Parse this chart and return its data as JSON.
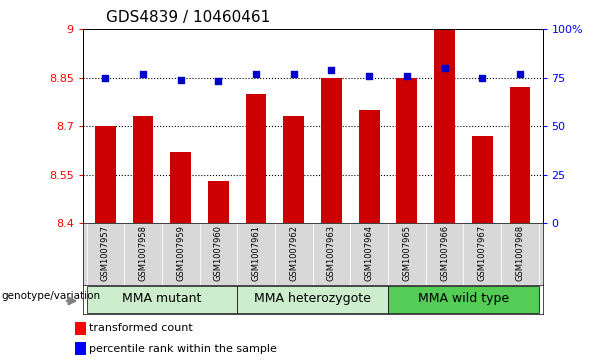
{
  "title": "GDS4839 / 10460461",
  "samples": [
    "GSM1007957",
    "GSM1007958",
    "GSM1007959",
    "GSM1007960",
    "GSM1007961",
    "GSM1007962",
    "GSM1007963",
    "GSM1007964",
    "GSM1007965",
    "GSM1007966",
    "GSM1007967",
    "GSM1007968"
  ],
  "transformed_counts": [
    8.7,
    8.73,
    8.62,
    8.53,
    8.8,
    8.73,
    8.85,
    8.75,
    8.85,
    9.0,
    8.67,
    8.82
  ],
  "percentile_ranks": [
    75,
    77,
    74,
    73,
    77,
    77,
    79,
    76,
    76,
    80,
    75,
    77
  ],
  "ylim_left": [
    8.4,
    9.0
  ],
  "ylim_right": [
    0,
    100
  ],
  "yticks_left": [
    8.4,
    8.55,
    8.7,
    8.85,
    9.0
  ],
  "ytick_labels_left": [
    "8.4",
    "8.55",
    "8.7",
    "8.85",
    "9"
  ],
  "yticks_right": [
    0,
    25,
    50,
    75,
    100
  ],
  "ytick_labels_right": [
    "0",
    "25",
    "50",
    "75",
    "100%"
  ],
  "bar_color": "#cc0000",
  "dot_color": "#0000cc",
  "genotype_label": "genotype/variation",
  "legend_bar": "transformed count",
  "legend_dot": "percentile rank within the sample",
  "hgrid_values": [
    8.55,
    8.7,
    8.85
  ],
  "title_fontsize": 11,
  "tick_fontsize": 8,
  "group_label_fontsize": 9,
  "sample_label_fontsize": 6,
  "group_defs": [
    {
      "label": "MMA mutant",
      "start": 0,
      "end": 3,
      "color": "#cceecc"
    },
    {
      "label": "MMA heterozygote",
      "start": 4,
      "end": 7,
      "color": "#cceecc"
    },
    {
      "label": "MMA wild type",
      "start": 8,
      "end": 11,
      "color": "#55cc55"
    }
  ]
}
